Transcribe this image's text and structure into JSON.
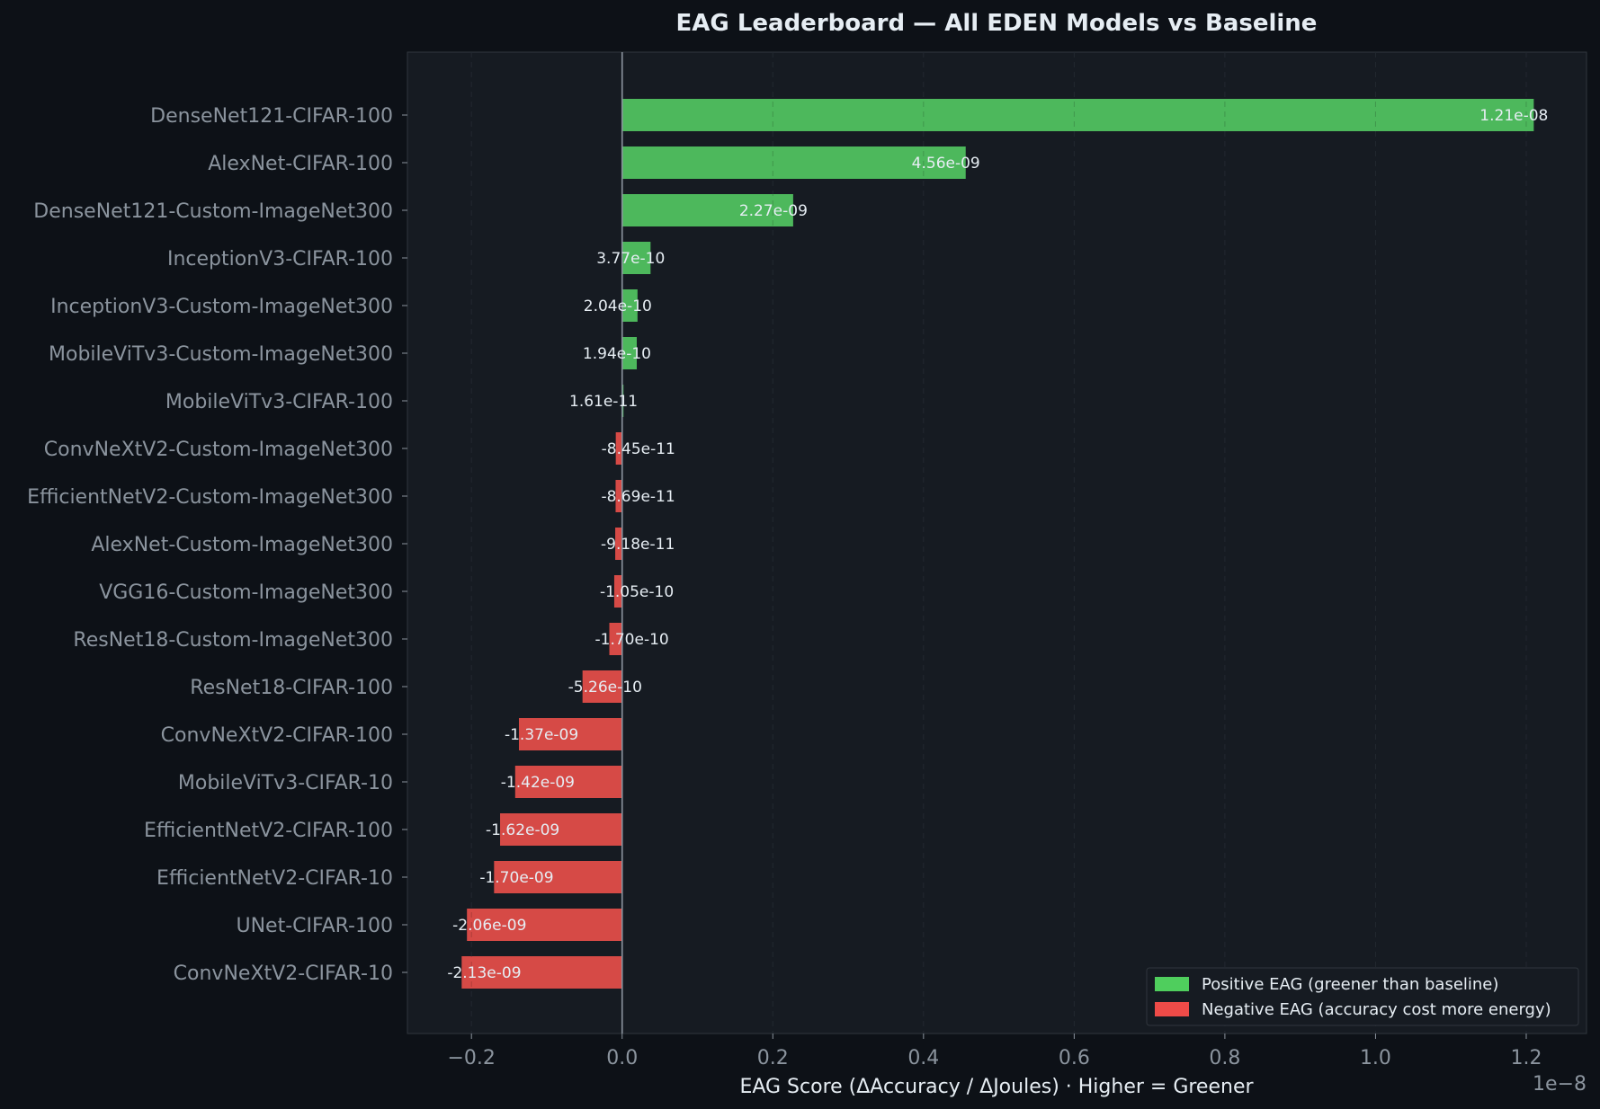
{
  "chart_data": {
    "type": "bar",
    "orientation": "horizontal",
    "title": "EAG Leaderboard — All EDEN Models vs Baseline",
    "xlabel": "EAG Score  (ΔAccuracy / ΔJoules)  ·  Higher = Greener",
    "axis_offset_label": "1e−8",
    "xlim": [
      -2.85e-09,
      1.28e-08
    ],
    "xticks": [
      -2e-09,
      0,
      2e-09,
      4e-09,
      6e-09,
      8e-09,
      1e-08,
      1.2e-08
    ],
    "xtick_labels": [
      "−0.2",
      "0.0",
      "0.2",
      "0.4",
      "0.6",
      "0.8",
      "1.0",
      "1.2"
    ],
    "grid": "x, dashed",
    "legend_position": "bottom-right",
    "colors": {
      "background": "#0d1117",
      "plot_background": "#161b22",
      "positive": "#4db85c",
      "negative": "#d64a46",
      "positive_legend": "#4fce5d",
      "negative_legend": "#ee4b48",
      "text": "#e6edf3",
      "muted_text": "#8b949e",
      "zero_line": "#8b949e"
    },
    "legend": [
      {
        "label": "Positive EAG  (greener than baseline)",
        "color": "#4fce5d"
      },
      {
        "label": "Negative EAG  (accuracy cost more energy)",
        "color": "#ee4b48"
      }
    ],
    "categories": [
      "DenseNet121-CIFAR-100",
      "AlexNet-CIFAR-100",
      "DenseNet121-Custom-ImageNet300",
      "InceptionV3-CIFAR-100",
      "InceptionV3-Custom-ImageNet300",
      "MobileViTv3-Custom-ImageNet300",
      "MobileViTv3-CIFAR-100",
      "ConvNeXtV2-Custom-ImageNet300",
      "EfficientNetV2-Custom-ImageNet300",
      "AlexNet-Custom-ImageNet300",
      "VGG16-Custom-ImageNet300",
      "ResNet18-Custom-ImageNet300",
      "ResNet18-CIFAR-100",
      "ConvNeXtV2-CIFAR-100",
      "MobileViTv3-CIFAR-10",
      "EfficientNetV2-CIFAR-100",
      "EfficientNetV2-CIFAR-10",
      "UNet-CIFAR-100",
      "ConvNeXtV2-CIFAR-10"
    ],
    "values": [
      1.21e-08,
      4.56e-09,
      2.27e-09,
      3.77e-10,
      2.04e-10,
      1.94e-10,
      1.61e-11,
      -8.45e-11,
      -8.69e-11,
      -9.18e-11,
      -1.05e-10,
      -1.7e-10,
      -5.26e-10,
      -1.37e-09,
      -1.42e-09,
      -1.62e-09,
      -1.7e-09,
      -2.06e-09,
      -2.13e-09
    ],
    "value_labels": [
      "1.21e-08",
      "4.56e-09",
      "2.27e-09",
      "3.77e-10",
      "2.04e-10",
      "1.94e-10",
      "1.61e-11",
      "-8.45e-11",
      "-8.69e-11",
      "-9.18e-11",
      "-1.05e-10",
      "-1.70e-10",
      "-5.26e-10",
      "-1.37e-09",
      "-1.42e-09",
      "-1.62e-09",
      "-1.70e-09",
      "-2.06e-09",
      "-2.13e-09"
    ]
  }
}
